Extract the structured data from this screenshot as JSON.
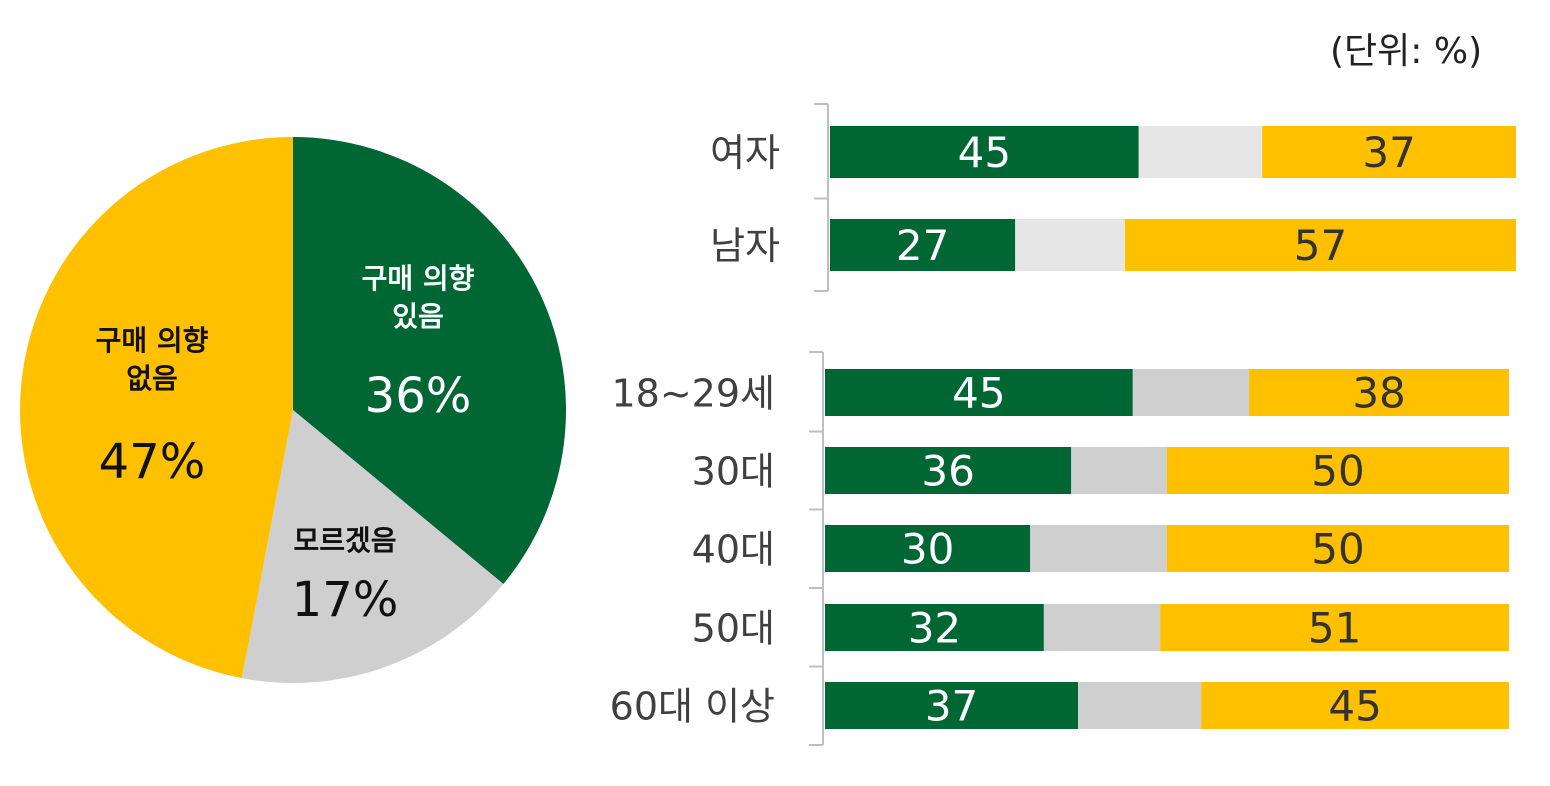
{
  "unit_label": "(단위: %)",
  "colors": {
    "green": "#006634",
    "gray_light": "#E6E6E6",
    "gray": "#D0CFCF",
    "yellow": "#FFC000"
  },
  "chart_data": [
    {
      "type": "pie",
      "slices": [
        {
          "label": "구매 의향 있음",
          "lines": [
            "구매 의향",
            "있음"
          ],
          "value": 36,
          "value_label": "36%",
          "color": "#006634",
          "text_color": "#ffffff"
        },
        {
          "label": "모르겠음",
          "lines": [
            "모르겠음"
          ],
          "value": 17,
          "value_label": "17%",
          "color": "#D0CFCF",
          "text_color": "#111111"
        },
        {
          "label": "구매 의향 없음",
          "lines": [
            "구매 의향",
            "없음"
          ],
          "value": 47,
          "value_label": "47%",
          "color": "#FFC000",
          "text_color": "#111111"
        }
      ]
    },
    {
      "type": "bar",
      "orientation": "horizontal",
      "stacked": true,
      "groups": [
        {
          "categories": [
            "여자",
            "남자"
          ],
          "series": [
            {
              "values": [
                45,
                27
              ],
              "color": "#006634"
            },
            {
              "values": [
                18,
                16
              ],
              "color": "#E6E6E6"
            },
            {
              "values": [
                37,
                57
              ],
              "color": "#FFC000"
            }
          ]
        },
        {
          "categories": [
            "18~29세",
            "30대",
            "40대",
            "50대",
            "60대 이상"
          ],
          "series": [
            {
              "values": [
                45,
                36,
                30,
                32,
                37
              ],
              "color": "#006634"
            },
            {
              "values": [
                17,
                14,
                20,
                17,
                18
              ],
              "color": "#D0CFCF"
            },
            {
              "values": [
                38,
                50,
                50,
                51,
                45
              ],
              "color": "#FFC000"
            }
          ]
        }
      ]
    }
  ]
}
